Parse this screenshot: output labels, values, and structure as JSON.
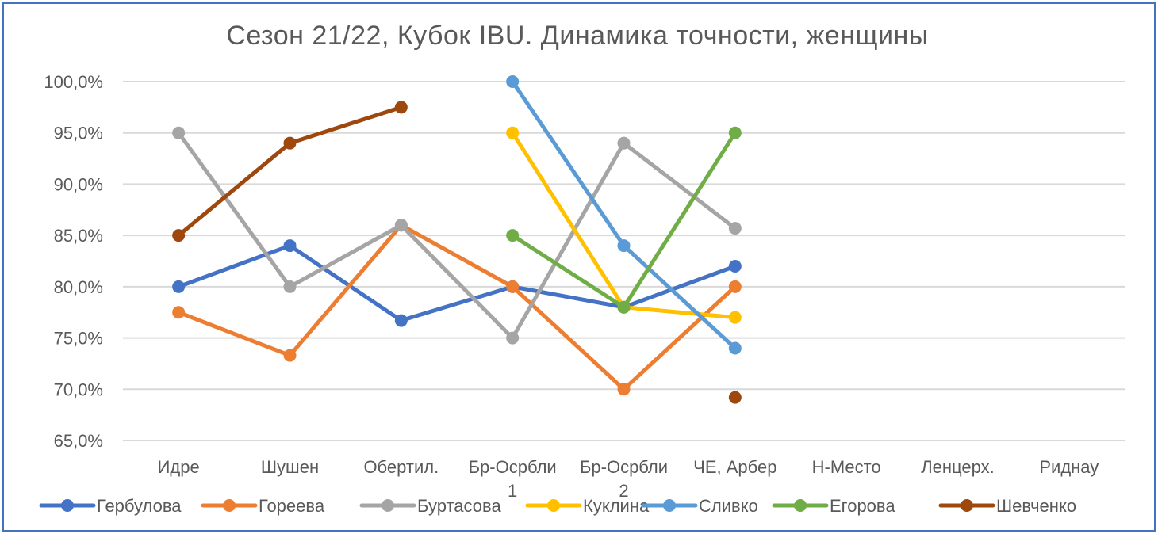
{
  "chart_data": {
    "type": "line",
    "title": "Сезон  21/22, Кубок IBU. Динамика точности,  женщины",
    "xlabel": "",
    "ylabel": "",
    "categories": [
      "Идре",
      "Шушен",
      "Обертил.",
      "Бр-Осрбли 1",
      "Бр-Осрбли 2",
      "ЧЕ, Арбер",
      "Н-Место",
      "Ленцерх.",
      "Риднау"
    ],
    "ylim": [
      65,
      100
    ],
    "yticks": [
      65,
      70,
      75,
      80,
      85,
      90,
      95,
      100
    ],
    "ytick_labels": [
      "65,0%",
      "70,0%",
      "75,0%",
      "80,0%",
      "85,0%",
      "90,0%",
      "95,0%",
      "100,0%"
    ],
    "grid": true,
    "legend_position": "bottom",
    "series": [
      {
        "name": "Гербулова",
        "color": "#4472C4",
        "values": [
          80,
          84,
          76.7,
          80,
          78,
          82,
          null,
          null,
          null
        ]
      },
      {
        "name": "Гореева",
        "color": "#ED7D31",
        "values": [
          77.5,
          73.3,
          86,
          80,
          70,
          80,
          null,
          null,
          null
        ]
      },
      {
        "name": "Буртасова",
        "color": "#A5A5A5",
        "values": [
          95,
          80,
          86,
          75,
          94,
          85.7,
          null,
          null,
          null
        ]
      },
      {
        "name": "Куклина",
        "color": "#FFC000",
        "values": [
          null,
          null,
          null,
          95,
          78,
          77,
          null,
          null,
          null
        ]
      },
      {
        "name": "Сливко",
        "color": "#5B9BD5",
        "values": [
          null,
          null,
          null,
          100,
          84,
          74,
          null,
          null,
          null
        ]
      },
      {
        "name": "Егорова",
        "color": "#70AD47",
        "values": [
          null,
          null,
          null,
          85,
          78,
          95,
          null,
          null,
          null
        ]
      },
      {
        "name": "Шевченко",
        "color": "#9E480E",
        "values": [
          85,
          94,
          97.5,
          null,
          null,
          69.2,
          null,
          null,
          null
        ]
      }
    ]
  }
}
